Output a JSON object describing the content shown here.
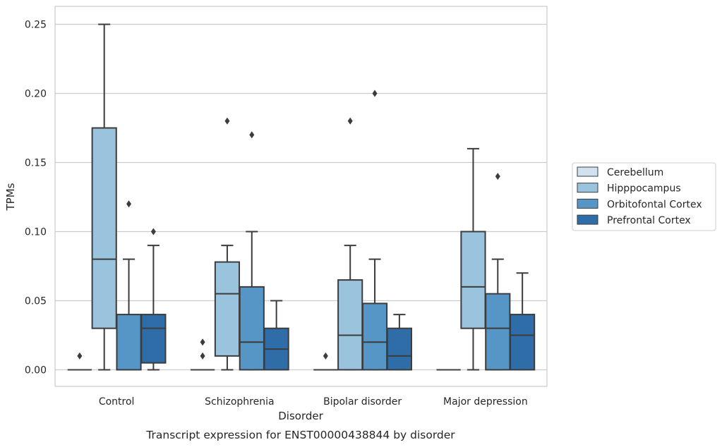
{
  "chart_data": {
    "type": "box",
    "xlabel": "Disorder",
    "ylabel": "TPMs",
    "caption": "Transcript expression for ENST00000438844 by disorder",
    "ylim": [
      -0.012,
      0.263
    ],
    "yticks": [
      "0.00",
      "0.05",
      "0.10",
      "0.15",
      "0.20",
      "0.25"
    ],
    "ytick_values": [
      0,
      0.05,
      0.1,
      0.15,
      0.2,
      0.25
    ],
    "grid": true,
    "legend_position": "right",
    "categories": [
      "Control",
      "Schizophrenia",
      "Bipolar disorder",
      "Major depression"
    ],
    "series": [
      {
        "name": "Cerebellum",
        "color": "#d0e1f0",
        "boxes": [
          {
            "low": 0,
            "q1": 0,
            "median": 0,
            "q3": 0,
            "high": 0,
            "outliers": [
              0.01
            ]
          },
          {
            "low": 0,
            "q1": 0,
            "median": 0,
            "q3": 0,
            "high": 0,
            "outliers": [
              0.01,
              0.02
            ]
          },
          {
            "low": 0,
            "q1": 0,
            "median": 0,
            "q3": 0,
            "high": 0,
            "outliers": [
              0.01
            ]
          },
          {
            "low": 0,
            "q1": 0,
            "median": 0,
            "q3": 0,
            "high": 0,
            "outliers": []
          }
        ]
      },
      {
        "name": "Hipppocampus",
        "color": "#9ac3dd",
        "boxes": [
          {
            "low": 0,
            "q1": 0.03,
            "median": 0.08,
            "q3": 0.175,
            "high": 0.25,
            "outliers": []
          },
          {
            "low": 0,
            "q1": 0.01,
            "median": 0.055,
            "q3": 0.078,
            "high": 0.09,
            "outliers": [
              0.18
            ]
          },
          {
            "low": 0,
            "q1": 0,
            "median": 0.025,
            "q3": 0.065,
            "high": 0.09,
            "outliers": [
              0.18
            ]
          },
          {
            "low": 0,
            "q1": 0.03,
            "median": 0.06,
            "q3": 0.1,
            "high": 0.16,
            "outliers": []
          }
        ]
      },
      {
        "name": "Orbitofontal Cortex",
        "color": "#5596c6",
        "boxes": [
          {
            "low": 0,
            "q1": 0,
            "median": 0,
            "q3": 0.04,
            "high": 0.08,
            "outliers": [
              0.12
            ]
          },
          {
            "low": 0,
            "q1": 0,
            "median": 0.02,
            "q3": 0.06,
            "high": 0.1,
            "outliers": [
              0.17
            ]
          },
          {
            "low": 0,
            "q1": 0,
            "median": 0.02,
            "q3": 0.048,
            "high": 0.08,
            "outliers": [
              0.2
            ]
          },
          {
            "low": 0,
            "q1": 0,
            "median": 0.03,
            "q3": 0.055,
            "high": 0.08,
            "outliers": [
              0.14
            ]
          }
        ]
      },
      {
        "name": "Prefrontal Cortex",
        "color": "#2f6da9",
        "boxes": [
          {
            "low": 0,
            "q1": 0.005,
            "median": 0.03,
            "q3": 0.04,
            "high": 0.09,
            "outliers": [
              0.1
            ]
          },
          {
            "low": 0,
            "q1": 0,
            "median": 0.015,
            "q3": 0.03,
            "high": 0.05,
            "outliers": []
          },
          {
            "low": 0,
            "q1": 0,
            "median": 0.01,
            "q3": 0.03,
            "high": 0.04,
            "outliers": []
          },
          {
            "low": 0,
            "q1": 0,
            "median": 0.025,
            "q3": 0.04,
            "high": 0.07,
            "outliers": []
          }
        ]
      }
    ]
  }
}
